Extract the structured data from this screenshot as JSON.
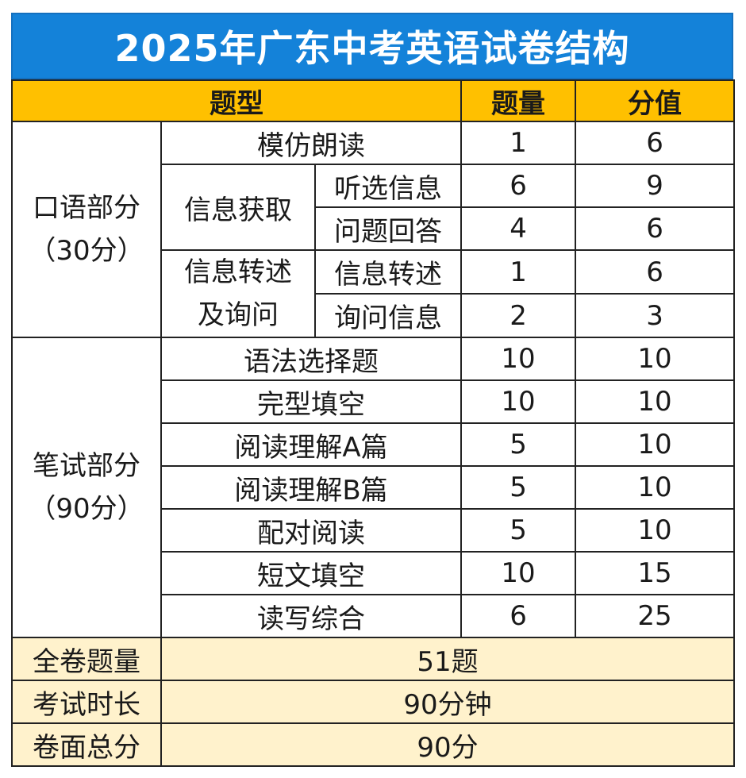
{
  "title": "2025年广东中考英语试卷结构",
  "headers": {
    "type": "题型",
    "count": "题量",
    "score": "分值"
  },
  "oral": {
    "section_line1": "口语部分",
    "section_line2": "（30分）",
    "rows": [
      {
        "item": "模仿朗读",
        "count": "1",
        "score": "6"
      }
    ],
    "info_get": {
      "group": "信息获取",
      "rows": [
        {
          "item": "听选信息",
          "count": "6",
          "score": "9"
        },
        {
          "item": "问题回答",
          "count": "4",
          "score": "6"
        }
      ]
    },
    "info_relay": {
      "group_line1": "信息转述",
      "group_line2": "及询问",
      "rows": [
        {
          "item": "信息转述",
          "count": "1",
          "score": "6"
        },
        {
          "item": "询问信息",
          "count": "2",
          "score": "3"
        }
      ]
    }
  },
  "written": {
    "section_line1": "笔试部分",
    "section_line2": "（90分）",
    "rows": [
      {
        "item": "语法选择题",
        "count": "10",
        "score": "10"
      },
      {
        "item": "完型填空",
        "count": "10",
        "score": "10"
      },
      {
        "item": "阅读理解A篇",
        "count": "5",
        "score": "10"
      },
      {
        "item": "阅读理解B篇",
        "count": "5",
        "score": "10"
      },
      {
        "item": "配对阅读",
        "count": "5",
        "score": "10"
      },
      {
        "item": "短文填空",
        "count": "10",
        "score": "15"
      },
      {
        "item": "读写综合",
        "count": "6",
        "score": "25"
      }
    ]
  },
  "summary": [
    {
      "label": "全卷题量",
      "value": "51题"
    },
    {
      "label": "考试时长",
      "value": "90分钟"
    },
    {
      "label": "卷面总分",
      "value": "90分"
    }
  ],
  "colors": {
    "title_bg": "#1482d9",
    "header_bg": "#ffc000",
    "summary_bg": "#fff2cc"
  }
}
